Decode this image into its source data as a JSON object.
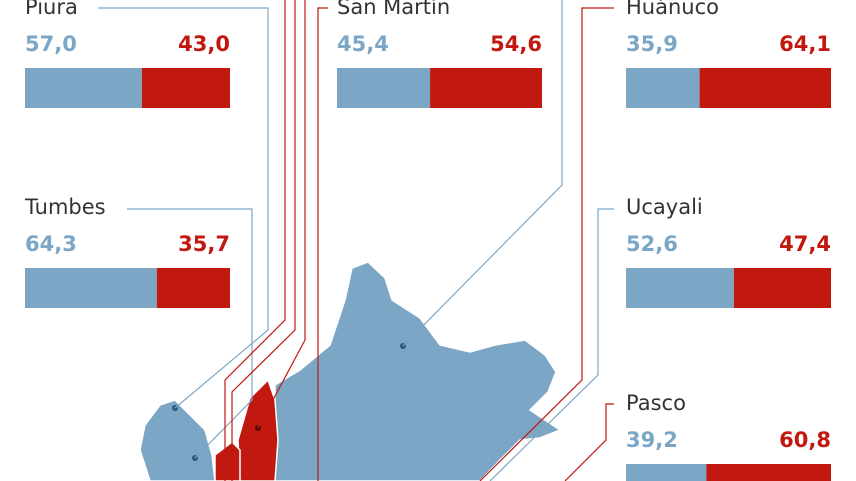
{
  "regions": [
    {
      "name": "Piura",
      "values": [
        57,
        43
      ],
      "value_labels": [
        "57,0",
        "43,0"
      ]
    },
    {
      "name": "San Martín",
      "values": [
        45.4,
        54.6
      ],
      "value_labels": [
        "45,4",
        "54,6"
      ]
    },
    {
      "name": "Huánuco",
      "values": [
        35.9,
        64.1
      ],
      "value_labels": [
        "35,9",
        "64,1"
      ]
    },
    {
      "name": "Tumbes",
      "values": [
        64.3,
        35.7
      ],
      "value_labels": [
        "64,3",
        "35,7"
      ]
    },
    {
      "name": "Ucayali",
      "values": [
        52.6,
        47.4
      ],
      "value_labels": [
        "52,6",
        "47,4"
      ]
    },
    {
      "name": "Pasco",
      "values": [
        39.2,
        60.8
      ],
      "value_labels": [
        "39,2",
        "60,8"
      ]
    }
  ],
  "colors": [
    "#7ba6c6",
    "#c1180f"
  ]
}
